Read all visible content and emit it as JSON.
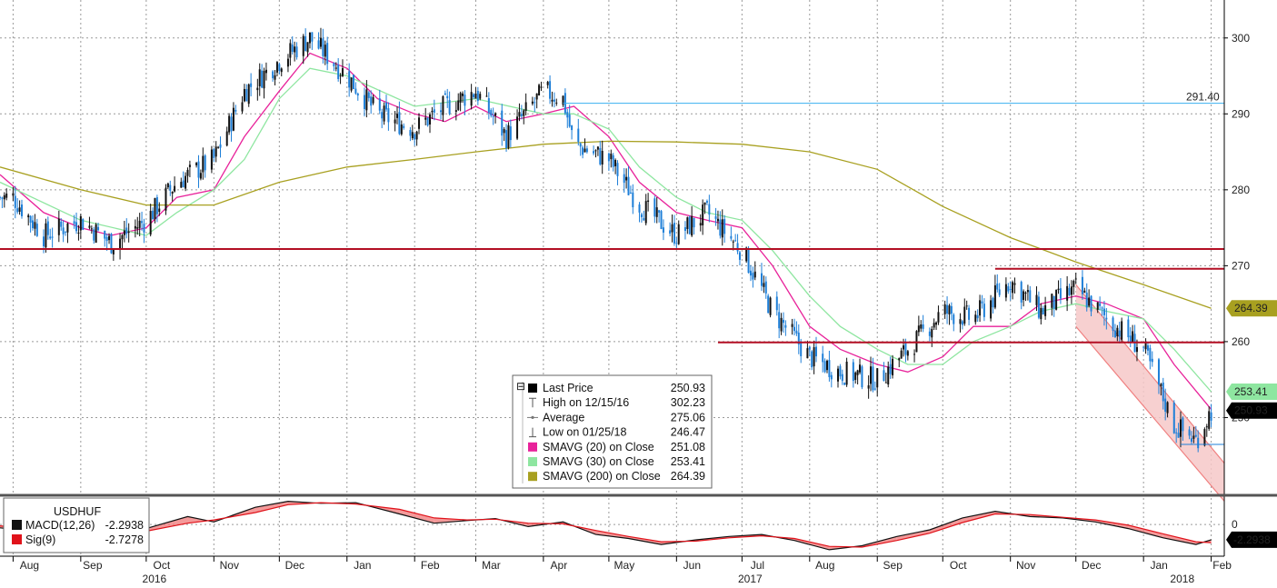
{
  "chart_data": [
    {
      "type": "candlestick",
      "instrument": "USDHUF",
      "ylim": [
        240,
        305
      ],
      "y_ticks": [
        250,
        260,
        270,
        280,
        290,
        300
      ],
      "x_range": [
        "2016-07-26",
        "2018-02-07"
      ],
      "colors": {
        "up": "#111111",
        "down": "#1e7fd8"
      },
      "series": [
        {
          "name": "Last Price",
          "kind": "price",
          "x": [
            "2016-08-01",
            "2016-08-15",
            "2016-09-01",
            "2016-09-15",
            "2016-10-01",
            "2016-10-15",
            "2016-11-01",
            "2016-11-15",
            "2016-12-01",
            "2016-12-15",
            "2017-01-01",
            "2017-01-15",
            "2017-02-01",
            "2017-02-15",
            "2017-03-01",
            "2017-03-15",
            "2017-04-01",
            "2017-04-10",
            "2017-04-15",
            "2017-05-01",
            "2017-05-15",
            "2017-06-01",
            "2017-06-15",
            "2017-07-01",
            "2017-07-15",
            "2017-08-01",
            "2017-08-15",
            "2017-09-01",
            "2017-09-15",
            "2017-10-01",
            "2017-10-15",
            "2017-11-01",
            "2017-11-15",
            "2017-12-01",
            "2017-12-15",
            "2018-01-01",
            "2018-01-15",
            "2018-01-25",
            "2018-02-01"
          ],
          "y": [
            279,
            274,
            276,
            273,
            276,
            281,
            284,
            293,
            297,
            300,
            295,
            290,
            288,
            291,
            293,
            287,
            293,
            292,
            286,
            284,
            278,
            274,
            277,
            272,
            264,
            258,
            256,
            255,
            259,
            264,
            263,
            268,
            264,
            267,
            263,
            259,
            249,
            247,
            250.93
          ]
        },
        {
          "name": "SMAVG (20) on Close",
          "kind": "ma",
          "color": "#e8229a",
          "value": 251.08,
          "x": [
            "2016-07-26",
            "2016-08-15",
            "2016-09-01",
            "2016-09-15",
            "2016-10-01",
            "2016-10-15",
            "2016-11-01",
            "2016-11-15",
            "2016-12-01",
            "2016-12-15",
            "2017-01-01",
            "2017-01-15",
            "2017-02-01",
            "2017-02-15",
            "2017-03-01",
            "2017-03-15",
            "2017-04-01",
            "2017-04-15",
            "2017-05-01",
            "2017-05-15",
            "2017-06-01",
            "2017-06-15",
            "2017-07-01",
            "2017-07-15",
            "2017-08-01",
            "2017-08-15",
            "2017-09-01",
            "2017-09-15",
            "2017-10-01",
            "2017-10-15",
            "2017-11-01",
            "2017-11-15",
            "2017-12-01",
            "2017-12-15",
            "2018-01-01",
            "2018-01-15",
            "2018-02-01"
          ],
          "y": [
            282,
            277,
            275,
            274,
            275,
            279,
            280,
            287,
            293,
            298,
            296,
            292,
            290,
            289,
            291,
            289,
            290,
            291,
            287,
            281,
            277,
            276,
            275,
            270,
            262,
            259,
            257,
            256,
            258,
            262,
            262,
            265,
            266,
            265,
            263,
            257,
            251.08
          ]
        },
        {
          "name": "SMAVG (30) on Close",
          "kind": "ma",
          "color": "#8ee6a0",
          "value": 253.41,
          "x": [
            "2016-07-26",
            "2016-09-01",
            "2016-10-01",
            "2016-10-15",
            "2016-11-01",
            "2016-11-15",
            "2016-12-01",
            "2016-12-15",
            "2017-01-01",
            "2017-02-01",
            "2017-03-01",
            "2017-04-01",
            "2017-04-15",
            "2017-05-01",
            "2017-05-15",
            "2017-06-01",
            "2017-06-15",
            "2017-07-01",
            "2017-07-15",
            "2017-08-01",
            "2017-08-15",
            "2017-09-01",
            "2017-09-15",
            "2017-10-01",
            "2017-10-15",
            "2017-11-01",
            "2017-11-15",
            "2017-12-01",
            "2017-12-15",
            "2018-01-01",
            "2018-01-15",
            "2018-02-01"
          ],
          "y": [
            281,
            276,
            274,
            277,
            280,
            284,
            292,
            296,
            295,
            291,
            292,
            290,
            290,
            288,
            283,
            279,
            277,
            276,
            272,
            266,
            262,
            259,
            257,
            257,
            260,
            262,
            264,
            265,
            264,
            263,
            259,
            253.41
          ]
        },
        {
          "name": "SMAVG (200) on Close",
          "kind": "ma",
          "color": "#a8a020",
          "value": 264.39,
          "x": [
            "2016-07-26",
            "2016-09-01",
            "2016-10-01",
            "2016-11-01",
            "2016-12-01",
            "2017-01-01",
            "2017-02-01",
            "2017-03-01",
            "2017-04-01",
            "2017-05-01",
            "2017-06-01",
            "2017-07-01",
            "2017-08-01",
            "2017-09-01",
            "2017-10-01",
            "2017-11-01",
            "2017-12-01",
            "2018-01-01",
            "2018-02-01"
          ],
          "y": [
            283,
            280,
            278,
            278,
            281,
            283,
            284,
            285,
            286,
            286.4,
            286.3,
            286,
            285,
            282.7,
            277.8,
            273.7,
            270.5,
            267.5,
            264.39
          ]
        }
      ],
      "reference_lines": [
        {
          "value": 291.4,
          "color": "#3ab0f0",
          "from": "2017-04-10"
        },
        {
          "value": 272.2,
          "color": "#b30f24"
        },
        {
          "value": 269.6,
          "color": "#b30f24",
          "from": "2017-10-25"
        },
        {
          "value": 259.9,
          "color": "#b30f24",
          "from": "2017-06-20"
        },
        {
          "value": 246.47,
          "color": "#1e7fd8",
          "from": "2018-01-18",
          "to": "2018-02-07"
        }
      ],
      "channel": {
        "color": "#f08080",
        "fill": "#f6c8c8",
        "top": [
          [
            "2017-12-01",
            267.5
          ],
          [
            "2018-02-07",
            244
          ]
        ],
        "bottom": [
          [
            "2017-12-01",
            262
          ],
          [
            "2018-02-07",
            239
          ]
        ]
      },
      "price_labels": [
        {
          "text": "291.40",
          "value": 291.4,
          "color": "#3ab0f0",
          "boxed": false
        },
        {
          "text": "264.39",
          "value": 264.39,
          "bg": "#a8a020",
          "fg": "#000000"
        },
        {
          "text": "253.41",
          "value": 253.41,
          "bg": "#8ee6a0",
          "fg": "#000000"
        },
        {
          "text": "250.93",
          "value": 250.93,
          "bg": "#000000",
          "fg": "#ffffff"
        }
      ]
    },
    {
      "type": "line",
      "panel": "MACD",
      "instrument": "USDHUF",
      "ylim": [
        -4.5,
        4
      ],
      "y_ticks": [
        0
      ],
      "series": [
        {
          "name": "MACD(12,26)",
          "color": "#111111",
          "value": -2.2938,
          "x": [
            "2016-07-26",
            "2016-08-15",
            "2016-09-01",
            "2016-09-15",
            "2016-10-01",
            "2016-10-20",
            "2016-11-01",
            "2016-11-20",
            "2016-12-05",
            "2016-12-20",
            "2017-01-05",
            "2017-01-25",
            "2017-02-10",
            "2017-02-25",
            "2017-03-10",
            "2017-03-25",
            "2017-04-10",
            "2017-04-25",
            "2017-05-10",
            "2017-05-25",
            "2017-06-10",
            "2017-06-25",
            "2017-07-10",
            "2017-07-25",
            "2017-08-10",
            "2017-08-25",
            "2017-09-10",
            "2017-09-25",
            "2017-10-10",
            "2017-10-25",
            "2017-11-10",
            "2017-11-25",
            "2017-12-10",
            "2017-12-25",
            "2018-01-10",
            "2018-01-25",
            "2018-02-01"
          ],
          "y": [
            -0.5,
            -1.2,
            -0.8,
            -1.6,
            -0.6,
            1.2,
            0.4,
            2.6,
            3.5,
            3.2,
            3.3,
            1.6,
            0.2,
            0.6,
            0.9,
            -0.3,
            0.4,
            -1.5,
            -2.1,
            -3.0,
            -2.3,
            -1.8,
            -1.5,
            -2.4,
            -3.8,
            -3.2,
            -1.8,
            -0.8,
            1.0,
            2.0,
            1.2,
            1.0,
            0.4,
            -0.6,
            -2.0,
            -3.0,
            -2.2938
          ]
        },
        {
          "name": "Sig(9)",
          "color": "#e0121a",
          "value": -2.7278,
          "x": [
            "2016-07-26",
            "2016-08-15",
            "2016-09-01",
            "2016-09-15",
            "2016-10-01",
            "2016-10-20",
            "2016-11-01",
            "2016-11-20",
            "2016-12-05",
            "2016-12-20",
            "2017-01-05",
            "2017-01-25",
            "2017-02-10",
            "2017-02-25",
            "2017-03-10",
            "2017-03-25",
            "2017-04-10",
            "2017-04-25",
            "2017-05-10",
            "2017-05-25",
            "2017-06-10",
            "2017-06-25",
            "2017-07-10",
            "2017-07-25",
            "2017-08-10",
            "2017-08-25",
            "2017-09-10",
            "2017-09-25",
            "2017-10-10",
            "2017-10-25",
            "2017-11-10",
            "2017-11-25",
            "2017-12-10",
            "2017-12-25",
            "2018-01-10",
            "2018-01-25",
            "2018-02-01"
          ],
          "y": [
            -0.2,
            -0.8,
            -1.0,
            -1.2,
            -1.0,
            0.2,
            0.7,
            1.8,
            3.0,
            3.3,
            3.1,
            2.3,
            1.0,
            0.7,
            0.8,
            0.2,
            0.1,
            -0.9,
            -1.8,
            -2.6,
            -2.5,
            -2.0,
            -1.7,
            -2.1,
            -3.3,
            -3.4,
            -2.4,
            -1.3,
            0.3,
            1.6,
            1.5,
            1.1,
            0.7,
            -0.1,
            -1.4,
            -2.6,
            -2.7278
          ]
        }
      ]
    }
  ],
  "months": [
    {
      "label": "Aug",
      "date": "2016-08-01",
      "dx": 18
    },
    {
      "label": "Sep",
      "date": "2016-09-01",
      "dx": 13
    },
    {
      "label": "Oct",
      "date": "2016-10-01",
      "dx": 17
    },
    {
      "label": "Nov",
      "date": "2016-11-01",
      "dx": 17
    },
    {
      "label": "Dec",
      "date": "2016-12-01",
      "dx": 17
    },
    {
      "label": "Jan",
      "date": "2017-01-01",
      "dx": 17
    },
    {
      "label": "Feb",
      "date": "2017-02-01",
      "dx": 17
    },
    {
      "label": "Mar",
      "date": "2017-03-01",
      "dx": 17
    },
    {
      "label": "Apr",
      "date": "2017-04-01",
      "dx": 17
    },
    {
      "label": "May",
      "date": "2017-05-01",
      "dx": 17
    },
    {
      "label": "Jun",
      "date": "2017-06-01",
      "dx": 17
    },
    {
      "label": "Jul",
      "date": "2017-07-01",
      "dx": 17
    },
    {
      "label": "Aug",
      "date": "2017-08-01",
      "dx": 17
    },
    {
      "label": "Sep",
      "date": "2017-09-01",
      "dx": 17
    },
    {
      "label": "Oct",
      "date": "2017-10-01",
      "dx": 17
    },
    {
      "label": "Nov",
      "date": "2017-11-01",
      "dx": 17
    },
    {
      "label": "Dec",
      "date": "2017-12-01",
      "dx": 17
    },
    {
      "label": "Jan",
      "date": "2018-01-01",
      "dx": 17
    },
    {
      "label": "Feb",
      "date": "2018-02-01",
      "dx": 12
    }
  ],
  "years": [
    {
      "label": "2016",
      "date": "2016-10-01"
    },
    {
      "label": "2017",
      "date": "2017-07-01"
    },
    {
      "label": "2018",
      "date": "2018-01-15"
    }
  ],
  "legend": {
    "rows": [
      {
        "label": "Last Price",
        "value": "250.93",
        "marker": "square",
        "color": "#000000"
      },
      {
        "label": "High on 12/15/16",
        "value": "302.23",
        "marker": "high"
      },
      {
        "label": "Average",
        "value": "275.06",
        "marker": "average"
      },
      {
        "label": "Low on 01/25/18",
        "value": "246.47",
        "marker": "low"
      },
      {
        "label": "SMAVG (20) on Close",
        "value": "251.08",
        "marker": "square",
        "color": "#e8229a"
      },
      {
        "label": "SMAVG (30) on Close",
        "value": "253.41",
        "marker": "square",
        "color": "#8ee6a0"
      },
      {
        "label": "SMAVG (200) on Close",
        "value": "264.39",
        "marker": "square",
        "color": "#a8a020"
      }
    ]
  },
  "macd_legend": {
    "title": "USDHUF",
    "rows": [
      {
        "label": "MACD(12,26)",
        "value": "-2.2938",
        "color": "#111111"
      },
      {
        "label": "Sig(9)",
        "value": "-2.7278",
        "color": "#e0121a"
      }
    ]
  },
  "macd_label": {
    "text": "-2.2938",
    "bg": "#000000",
    "fg": "#ffffff",
    "value": -2.2938
  },
  "macd_zero_label": "0"
}
